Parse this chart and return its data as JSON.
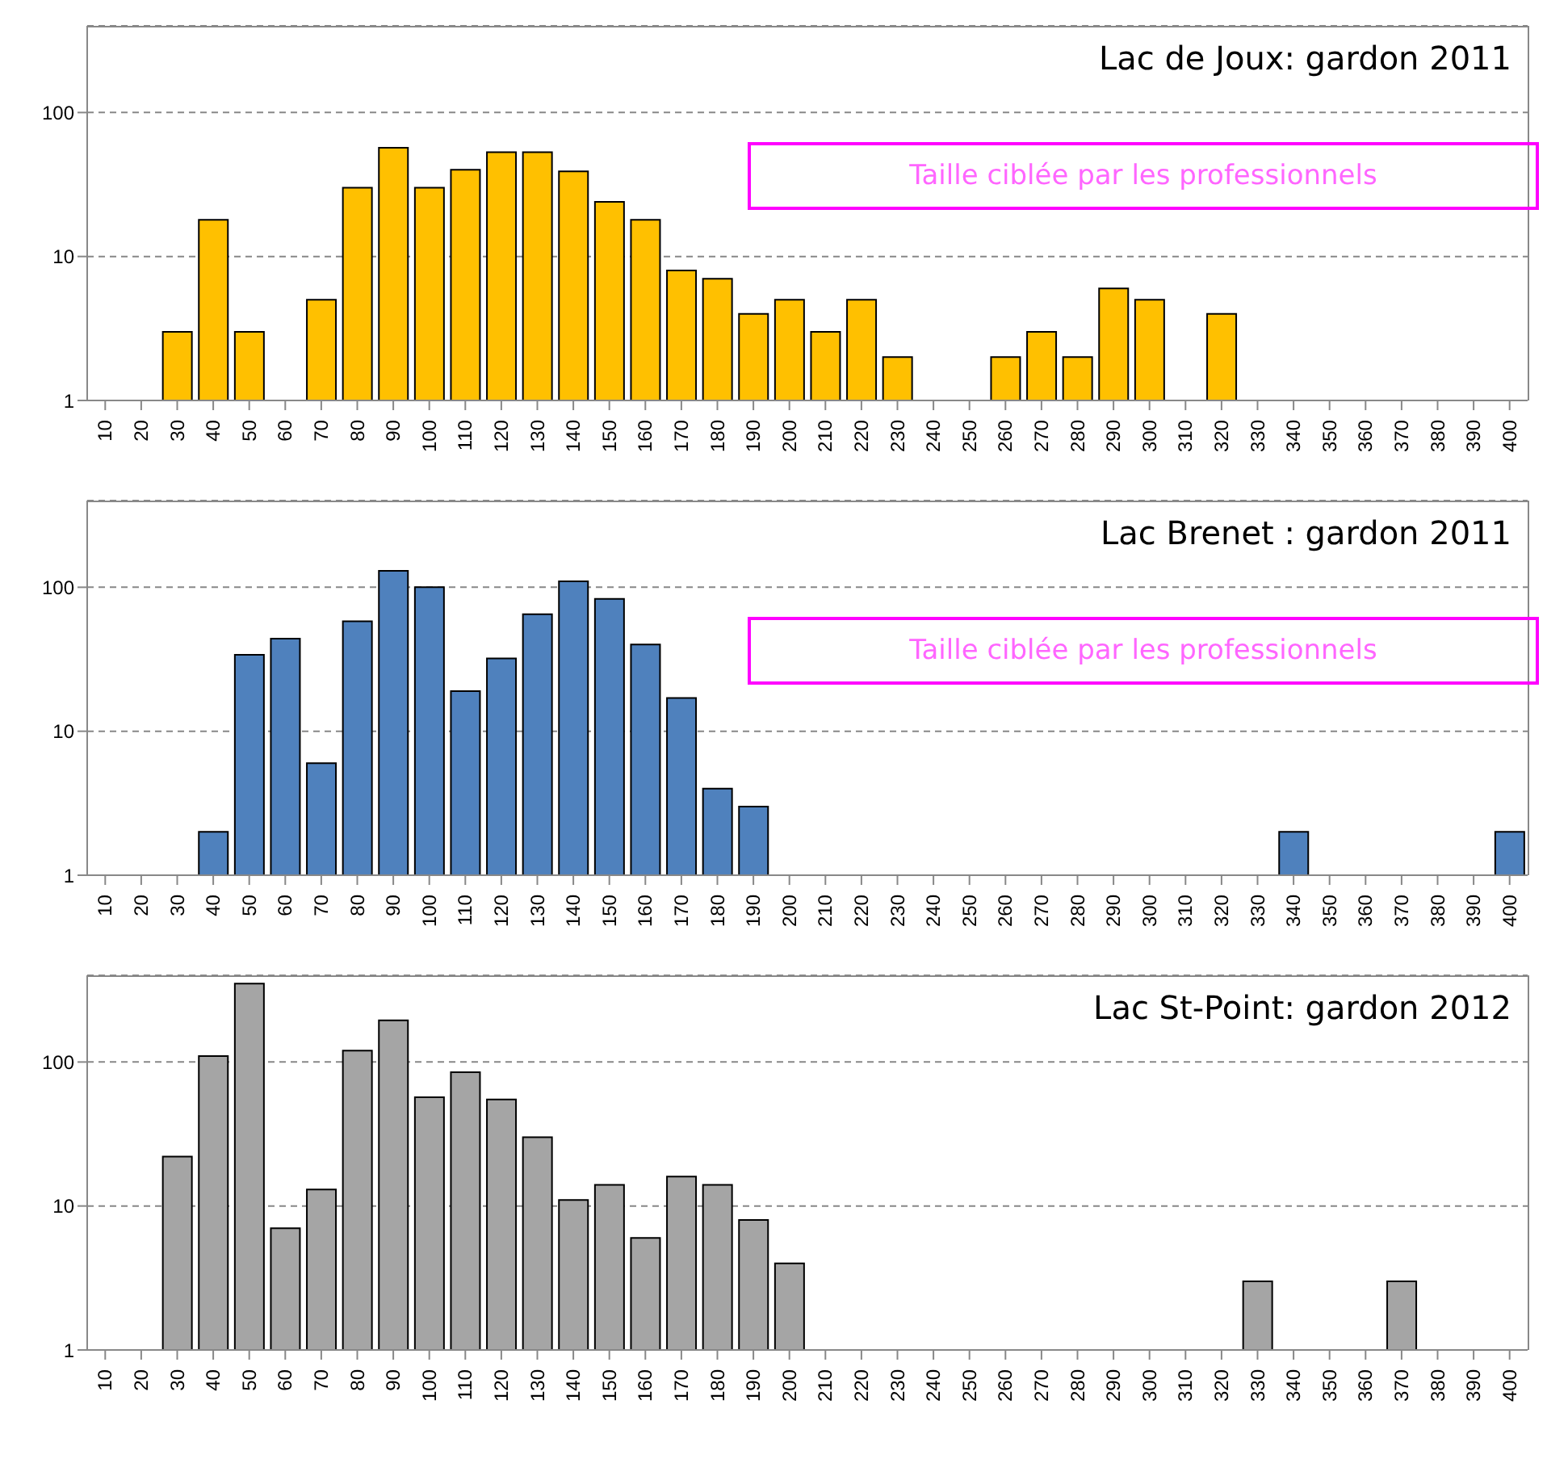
{
  "chart_data": [
    {
      "type": "bar",
      "title": "Lac de Joux: gardon 2011",
      "categories": [
        "10",
        "20",
        "30",
        "40",
        "50",
        "60",
        "70",
        "80",
        "90",
        "100",
        "110",
        "120",
        "130",
        "140",
        "150",
        "160",
        "170",
        "180",
        "190",
        "200",
        "210",
        "220",
        "230",
        "240",
        "250",
        "260",
        "270",
        "280",
        "290",
        "300",
        "310",
        "320",
        "330",
        "340",
        "350",
        "360",
        "370",
        "380",
        "390",
        "400"
      ],
      "series": [
        {
          "color": "#ffc000",
          "values": [
            null,
            null,
            3,
            18,
            3,
            null,
            5,
            30,
            57,
            30,
            40,
            53,
            53,
            39,
            24,
            18,
            8,
            7,
            4,
            5,
            3,
            5,
            2,
            null,
            null,
            2,
            3,
            2,
            6,
            5,
            null,
            4,
            null,
            null,
            null,
            null,
            null,
            null,
            null,
            null
          ]
        }
      ],
      "log": "y",
      "ylim": [
        1,
        400
      ],
      "yticks": [
        1,
        10,
        100
      ],
      "grid": "y",
      "annotations": [
        "Taille ciblée par les professionnels"
      ]
    },
    {
      "type": "bar",
      "title": "Lac Brenet : gardon 2011",
      "categories": [
        "10",
        "20",
        "30",
        "40",
        "50",
        "60",
        "70",
        "80",
        "90",
        "100",
        "110",
        "120",
        "130",
        "140",
        "150",
        "160",
        "170",
        "180",
        "190",
        "200",
        "210",
        "220",
        "230",
        "240",
        "250",
        "260",
        "270",
        "280",
        "290",
        "300",
        "310",
        "320",
        "330",
        "340",
        "350",
        "360",
        "370",
        "380",
        "390",
        "400"
      ],
      "series": [
        {
          "color": "#4f81bd",
          "values": [
            null,
            null,
            null,
            2,
            34,
            44,
            6,
            58,
            130,
            100,
            19,
            32,
            65,
            110,
            83,
            40,
            17,
            4,
            3,
            null,
            null,
            null,
            null,
            null,
            null,
            null,
            null,
            null,
            null,
            null,
            null,
            null,
            null,
            2,
            null,
            null,
            null,
            null,
            null,
            2
          ]
        }
      ],
      "log": "y",
      "ylim": [
        1,
        400
      ],
      "yticks": [
        1,
        10,
        100
      ],
      "grid": "y",
      "annotations": [
        "Taille ciblée par les professionnels"
      ]
    },
    {
      "type": "bar",
      "title": "Lac St-Point: gardon 2012",
      "categories": [
        "10",
        "20",
        "30",
        "40",
        "50",
        "60",
        "70",
        "80",
        "90",
        "100",
        "110",
        "120",
        "130",
        "140",
        "150",
        "160",
        "170",
        "180",
        "190",
        "200",
        "210",
        "220",
        "230",
        "240",
        "250",
        "260",
        "270",
        "280",
        "290",
        "300",
        "310",
        "320",
        "330",
        "340",
        "350",
        "360",
        "370",
        "380",
        "390",
        "400"
      ],
      "series": [
        {
          "color": "#a5a5a5",
          "values": [
            null,
            null,
            22,
            110,
            350,
            7,
            13,
            120,
            195,
            57,
            85,
            55,
            30,
            11,
            14,
            6,
            16,
            14,
            8,
            4,
            null,
            null,
            null,
            null,
            null,
            null,
            null,
            null,
            null,
            null,
            null,
            null,
            3,
            null,
            null,
            null,
            3,
            null,
            null,
            null
          ]
        }
      ],
      "log": "y",
      "ylim": [
        1,
        400
      ],
      "yticks": [
        1,
        10,
        100
      ],
      "grid": "y"
    }
  ]
}
